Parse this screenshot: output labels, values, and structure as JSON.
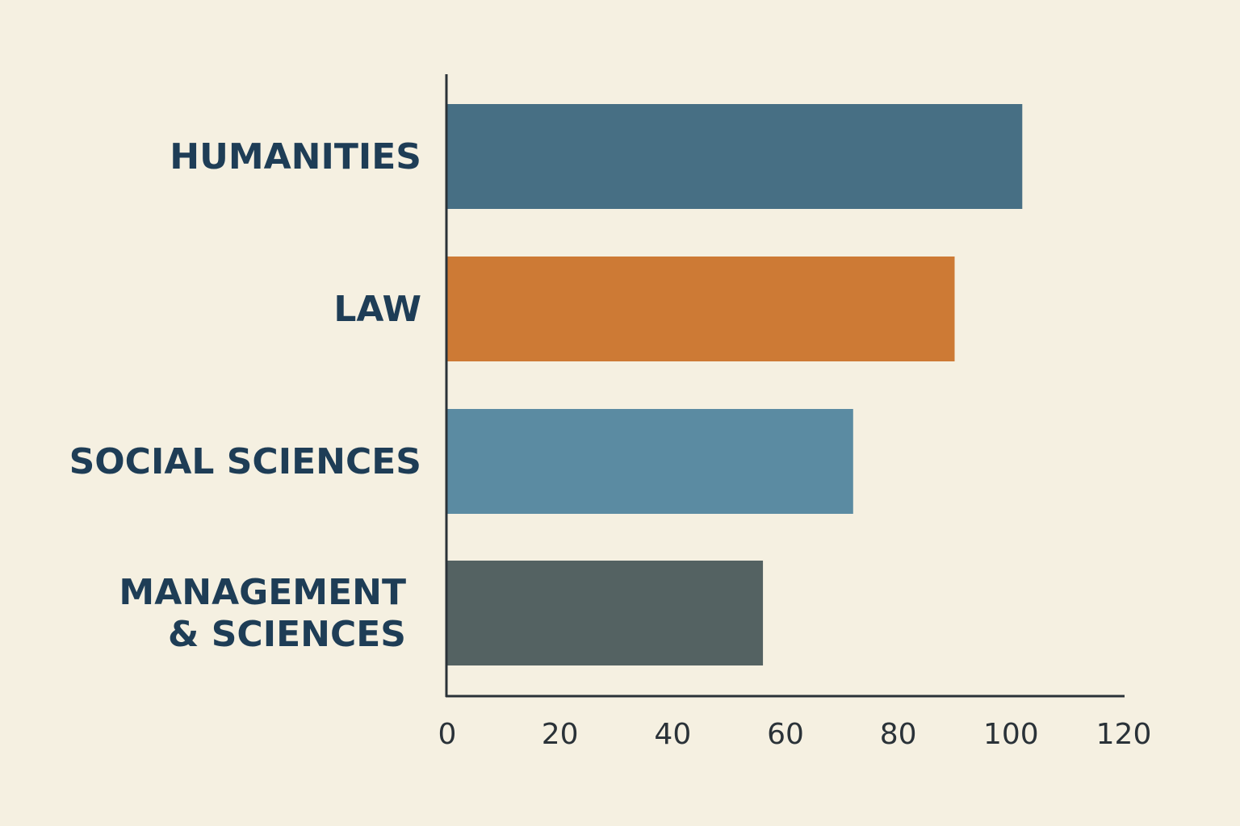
{
  "chart_data": {
    "type": "bar",
    "orientation": "horizontal",
    "title": "",
    "xlabel": "",
    "ylabel": "",
    "xlim": [
      0,
      120
    ],
    "xticks": [
      0,
      20,
      40,
      60,
      80,
      100,
      120
    ],
    "grid": false,
    "categories": [
      {
        "lines": [
          "HUMANITIES"
        ],
        "value": 102,
        "color": "#476f84"
      },
      {
        "lines": [
          "LAW"
        ],
        "value": 90,
        "color": "#cd7a35"
      },
      {
        "lines": [
          "SOCIAL SCIENCES"
        ],
        "value": 72,
        "color": "#5b8ba2"
      },
      {
        "lines": [
          "MANAGEMENT",
          "& SCIENCES"
        ],
        "value": 56,
        "color": "#546262"
      }
    ],
    "colors": {
      "background": "#f5f0e1",
      "axis": "#2a3238",
      "label": "#1e3d56"
    }
  }
}
